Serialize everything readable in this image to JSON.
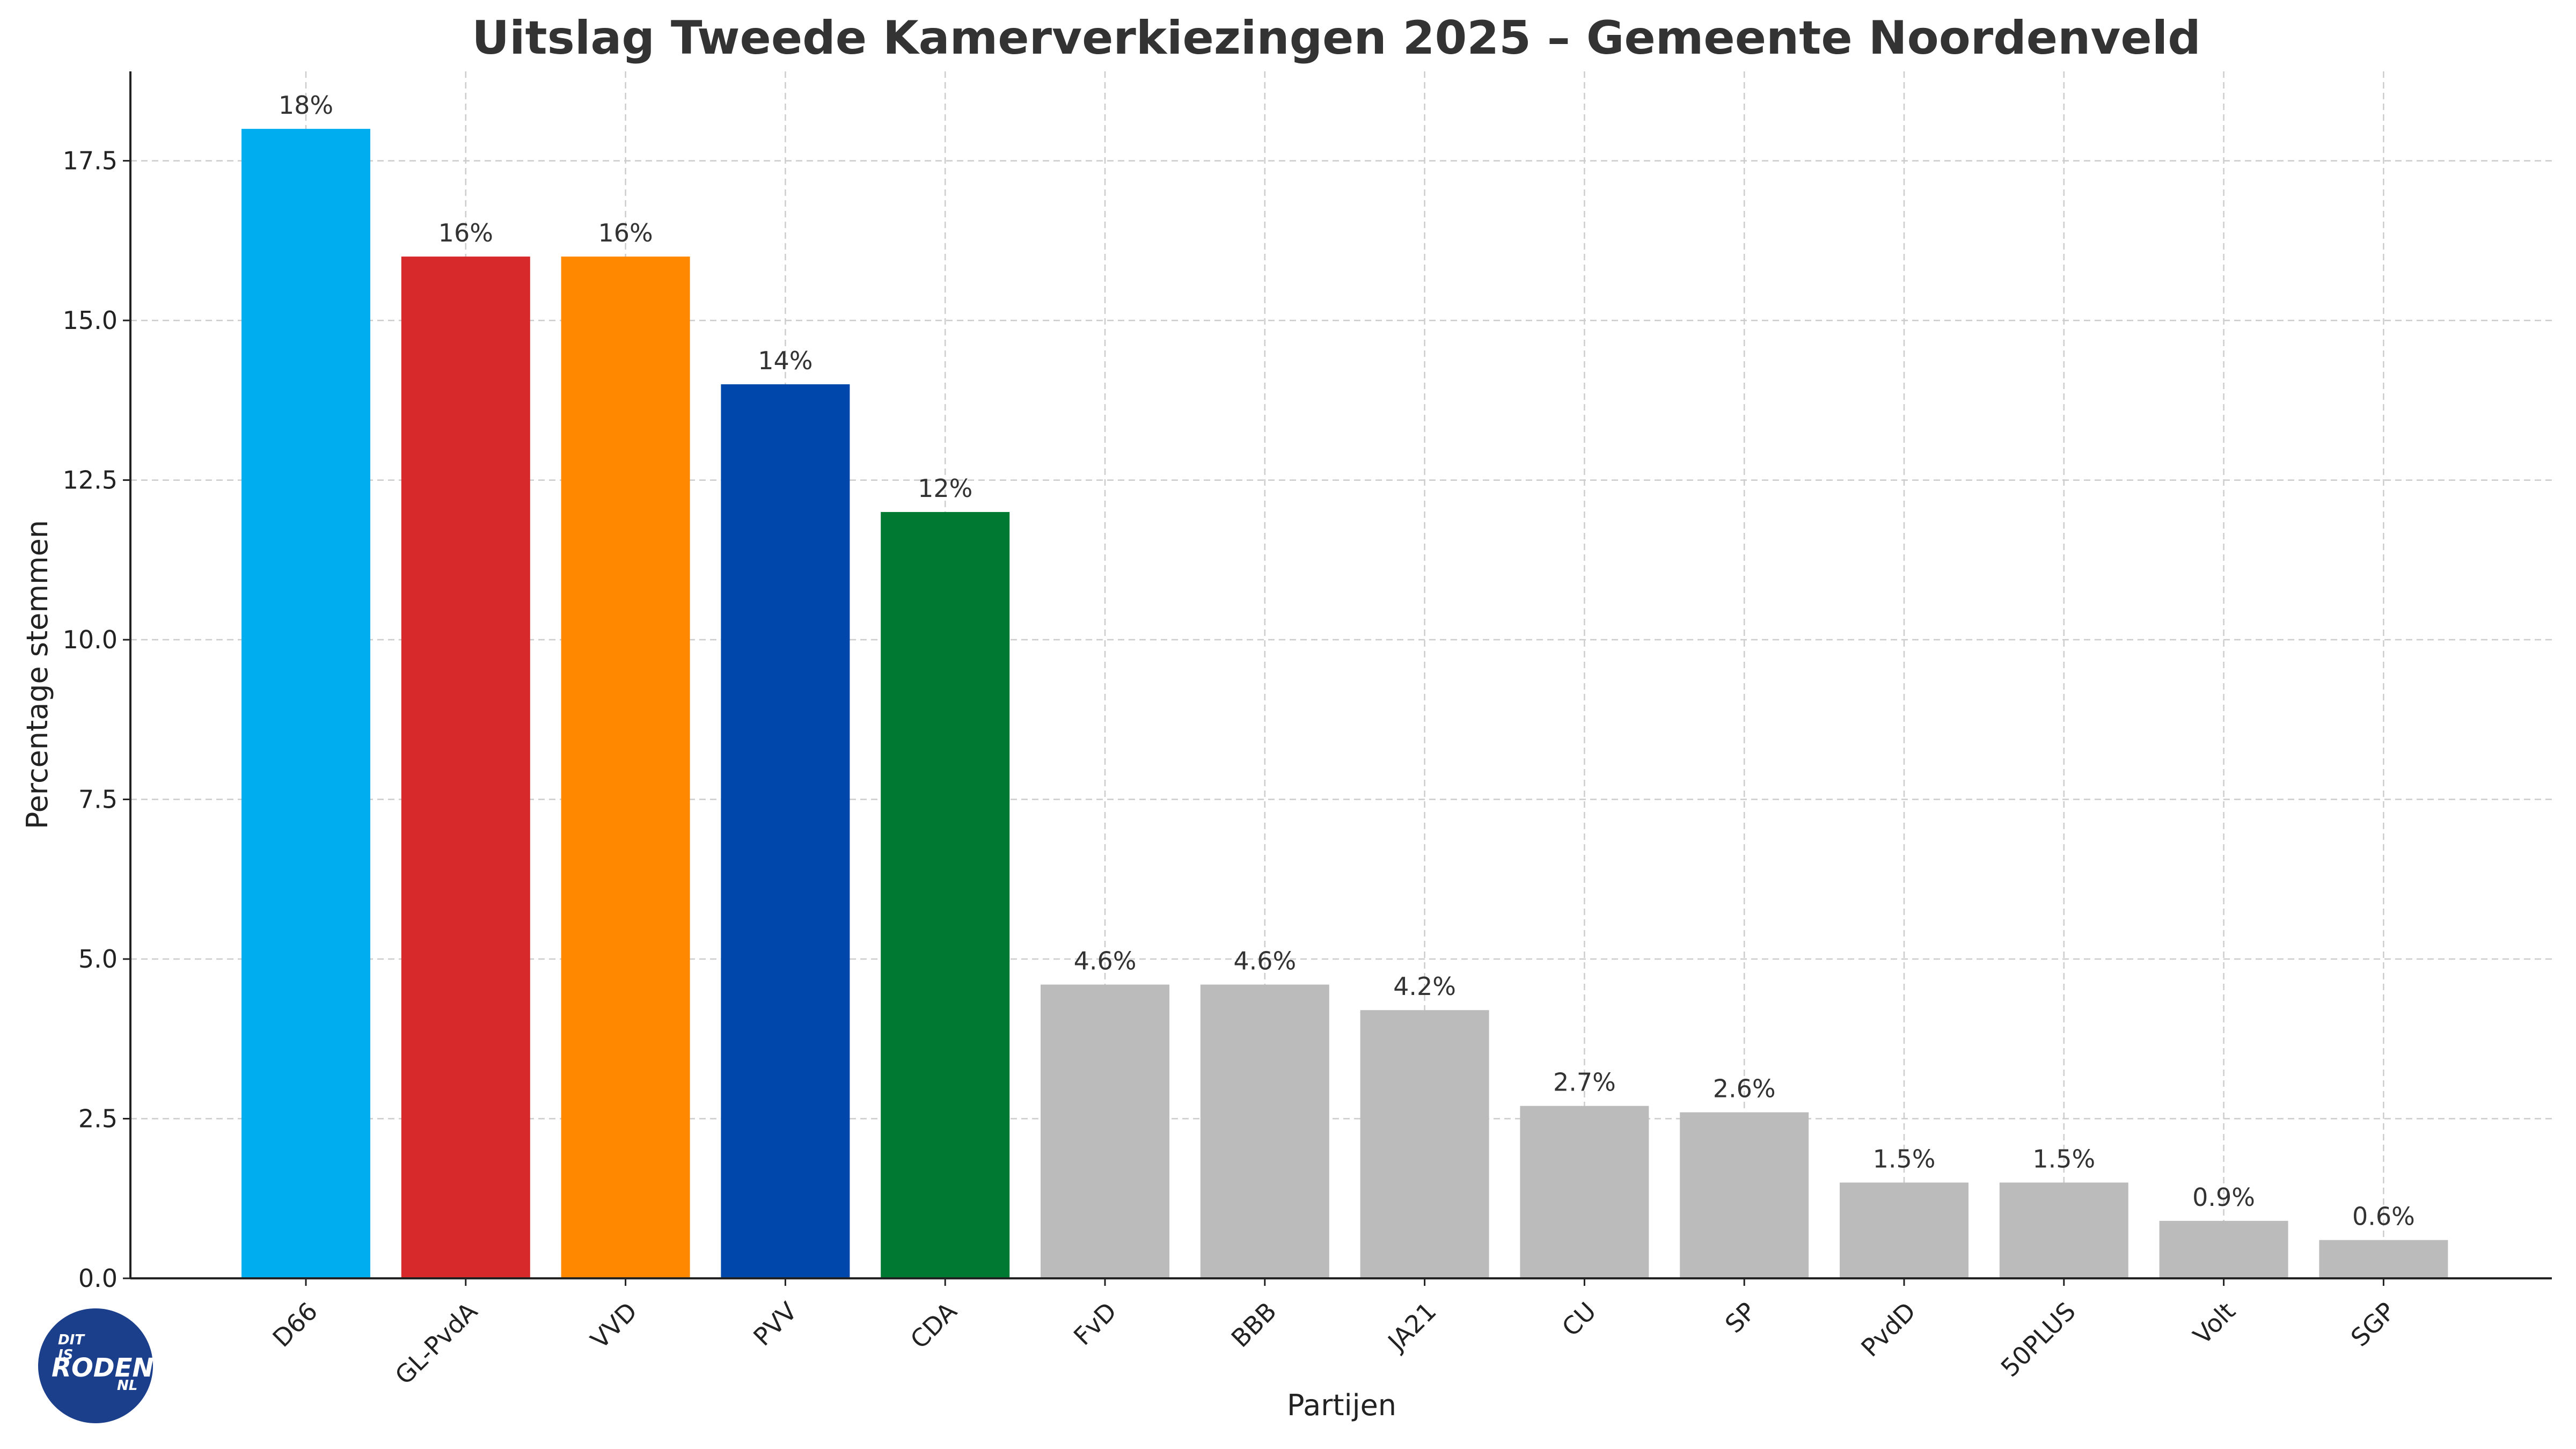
{
  "chart_data": {
    "type": "bar",
    "title": "Uitslag Tweede Kamerverkiezingen 2025 – Gemeente Noordenveld",
    "xlabel": "Partijen",
    "ylabel": "Percentage stemmen",
    "ylim": [
      0,
      18.9
    ],
    "yticks": [
      0.0,
      2.5,
      5.0,
      7.5,
      10.0,
      12.5,
      15.0,
      17.5
    ],
    "ytick_labels": [
      "0.0",
      "2.5",
      "5.0",
      "7.5",
      "10.0",
      "12.5",
      "15.0",
      "17.5"
    ],
    "grid": true,
    "categories": [
      "D66",
      "GL-PvdA",
      "VVD",
      "PVV",
      "CDA",
      "FvD",
      "BBB",
      "JA21",
      "CU",
      "SP",
      "PvdD",
      "50PLUS",
      "Volt",
      "SGP"
    ],
    "values": [
      18,
      16,
      16,
      14,
      12,
      4.6,
      4.6,
      4.2,
      2.7,
      2.6,
      1.5,
      1.5,
      0.9,
      0.6
    ],
    "value_labels": [
      "18%",
      "16%",
      "16%",
      "14%",
      "12%",
      "4.6%",
      "4.6%",
      "4.2%",
      "2.7%",
      "2.6%",
      "1.5%",
      "1.5%",
      "0.9%",
      "0.6%"
    ],
    "colors": [
      "#00AEEF",
      "#D7282B",
      "#FF8800",
      "#0047AB",
      "#007A33",
      "#BBBBBB",
      "#BBBBBB",
      "#BBBBBB",
      "#BBBBBB",
      "#BBBBBB",
      "#BBBBBB",
      "#BBBBBB",
      "#BBBBBB",
      "#BBBBBB"
    ]
  },
  "logo": {
    "text_lines": [
      "DIT",
      "IS",
      "RODEN",
      "NL"
    ],
    "background_color": "#1B3F8B"
  }
}
